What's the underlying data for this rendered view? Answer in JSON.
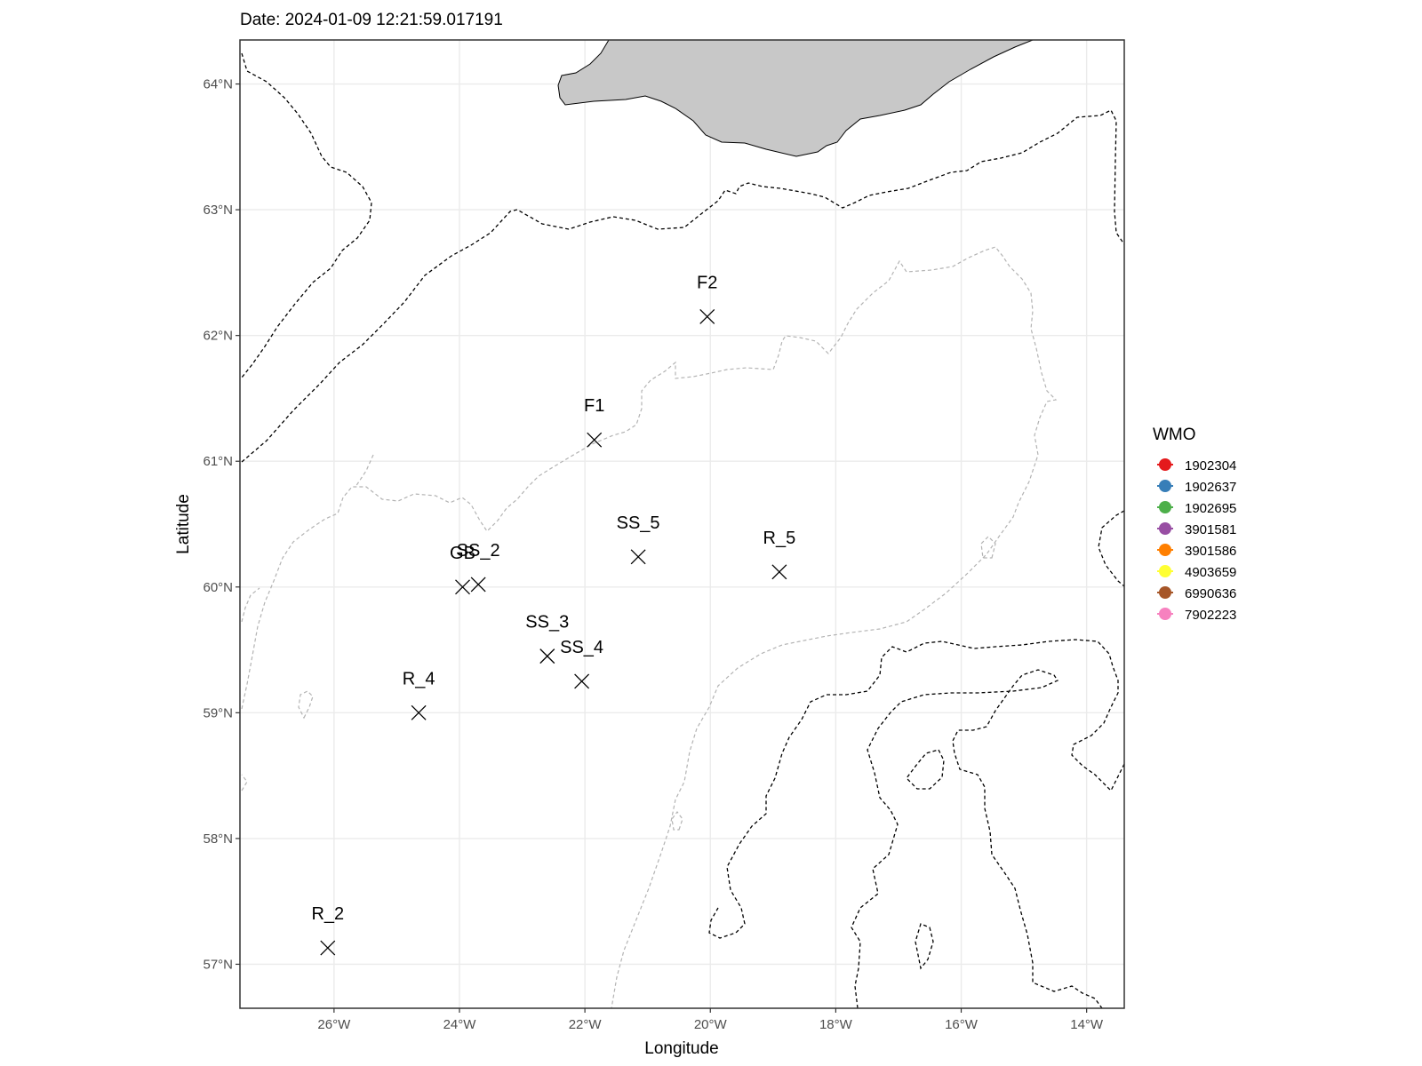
{
  "chart_data": {
    "type": "scatter",
    "title": "Date: 2024-01-09 12:21:59.017191",
    "xlabel": "Longitude",
    "ylabel": "Latitude",
    "xlim": [
      -27.5,
      -13.4
    ],
    "ylim": [
      56.65,
      64.35
    ],
    "x_ticks": [
      -26,
      -24,
      -22,
      -20,
      -18,
      -16,
      -14
    ],
    "x_tick_labels": [
      "26°W",
      "24°W",
      "22°W",
      "20°W",
      "18°W",
      "16°W",
      "14°W"
    ],
    "y_ticks": [
      57,
      58,
      59,
      60,
      61,
      62,
      63,
      64
    ],
    "y_tick_labels": [
      "57°N",
      "58°N",
      "59°N",
      "60°N",
      "61°N",
      "62°N",
      "63°N",
      "64°N"
    ],
    "grid": true,
    "stations": [
      {
        "label": "F2",
        "lon": -20.05,
        "lat": 62.15
      },
      {
        "label": "F1",
        "lon": -21.85,
        "lat": 61.17
      },
      {
        "label": "SS_5",
        "lon": -21.15,
        "lat": 60.24
      },
      {
        "label": "R_5",
        "lon": -18.9,
        "lat": 60.12
      },
      {
        "label": "SS_2",
        "lon": -23.7,
        "lat": 60.02
      },
      {
        "label": "GB",
        "lon": -23.95,
        "lat": 60.0
      },
      {
        "label": "SS_3",
        "lon": -22.6,
        "lat": 59.45
      },
      {
        "label": "SS_4",
        "lon": -22.05,
        "lat": 59.25
      },
      {
        "label": "R_4",
        "lon": -24.65,
        "lat": 59.0
      },
      {
        "label": "R_2",
        "lon": -26.1,
        "lat": 57.13
      }
    ],
    "legend": {
      "title": "WMO",
      "position": "right",
      "entries": [
        {
          "label": "1902304",
          "color": "#E41A1C"
        },
        {
          "label": "1902637",
          "color": "#377EB8"
        },
        {
          "label": "1902695",
          "color": "#4DAF4A"
        },
        {
          "label": "3901581",
          "color": "#984EA3"
        },
        {
          "label": "3901586",
          "color": "#FF7F00"
        },
        {
          "label": "4903659",
          "color": "#FFFF33"
        },
        {
          "label": "6990636",
          "color": "#A65628"
        },
        {
          "label": "7902223",
          "color": "#F781BF"
        }
      ]
    },
    "colors": {
      "land": "#C8C8C8",
      "grid": "#EBEBEB",
      "panel_border": "#333333",
      "deep_contour": "#000000",
      "shallow_contour": "#B3B3B3"
    }
  }
}
